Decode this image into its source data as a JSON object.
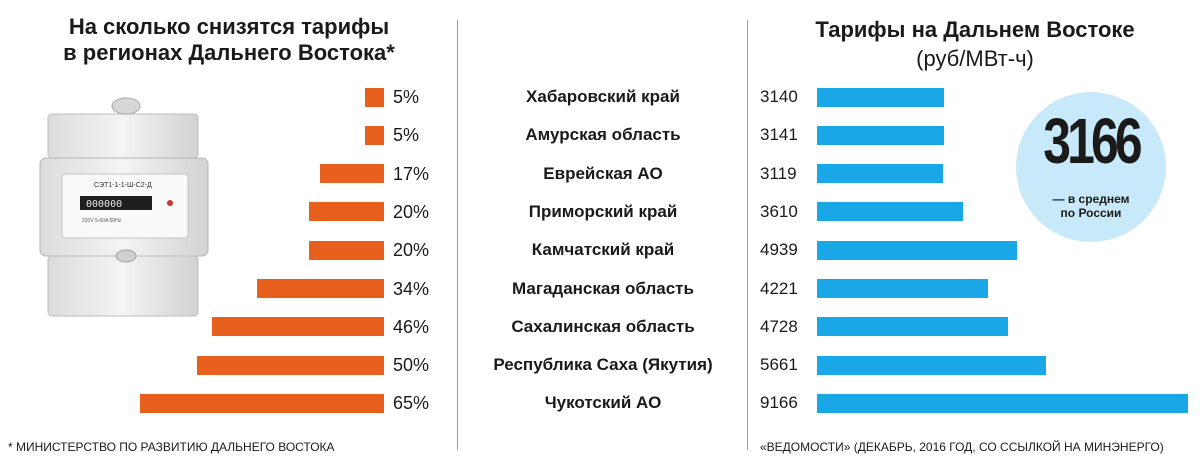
{
  "left_title": [
    "На сколько снизятся тарифы",
    "в регионах Дальнего Востока*"
  ],
  "right_title": "Тарифы на Дальнем Востоке",
  "right_subtitle": "(руб/МВт-ч)",
  "footnote_left": "* МИНИСТЕРСТВО ПО РАЗВИТИЮ ДАЛЬНЕГО ВОСТОКА",
  "footnote_right": "«ВЕДОМОСТИ» (ДЕКАБРЬ, 2016 ГОД, СО ССЫЛКОЙ НА МИНЭНЕРГО)",
  "average": {
    "value": "3166",
    "label_lines": [
      "— в среднем",
      "по России"
    ]
  },
  "meter": {
    "model": "СЭТ1-1-1-Ш-С2-Д",
    "specs": "220V  5-60A  50Hz",
    "reading": "000000"
  },
  "colors": {
    "orange": "#e8601e",
    "blue": "#1aa7e8",
    "circle": "#c8e9fa"
  },
  "chart_data": [
    {
      "type": "bar",
      "orientation": "horizontal",
      "title": "На сколько снизятся тарифы в регионах Дальнего Востока*",
      "categories": [
        "Хабаровский край",
        "Амурская область",
        "Еврейская АО",
        "Приморский край",
        "Камчатский край",
        "Магаданская область",
        "Сахалинская область",
        "Республика Саха (Якутия)",
        "Чукотский АО"
      ],
      "values": [
        5,
        5,
        17,
        20,
        20,
        34,
        46,
        50,
        65
      ],
      "labels": [
        "5%",
        "5%",
        "17%",
        "20%",
        "20%",
        "34%",
        "46%",
        "50%",
        "65%"
      ],
      "unit": "%",
      "color": "#e8601e",
      "grid": false
    },
    {
      "type": "bar",
      "orientation": "horizontal",
      "title": "Тарифы на Дальнем Востоке",
      "subtitle": "(руб/МВт-ч)",
      "categories": [
        "Хабаровский край",
        "Амурская область",
        "Еврейская АО",
        "Приморский край",
        "Камчатский край",
        "Магаданская область",
        "Сахалинская область",
        "Республика Саха (Якутия)",
        "Чукотский АО"
      ],
      "values": [
        3140,
        3141,
        3119,
        3610,
        4939,
        4221,
        4728,
        5661,
        9166
      ],
      "labels": [
        "3140",
        "3141",
        "3119",
        "3610",
        "4939",
        "4221",
        "4728",
        "5661",
        "9166"
      ],
      "reference": {
        "value": 3166,
        "label": "— в среднем по России"
      },
      "color": "#1aa7e8",
      "grid": false
    }
  ]
}
